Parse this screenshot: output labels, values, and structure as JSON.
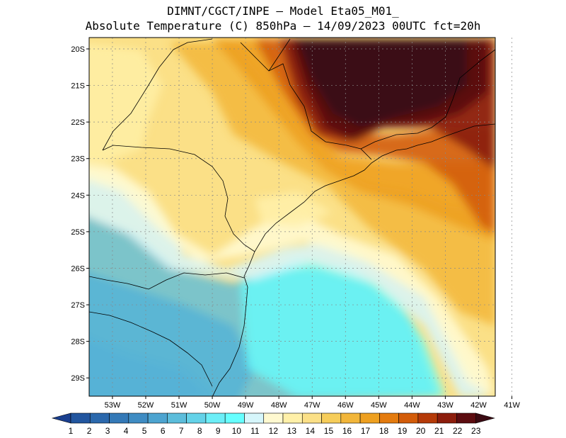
{
  "title": {
    "line1": "DIMNT/CGCT/INPE —  Model Eta05_M01_",
    "line2": "Absolute Temperature (C) 850hPa —  14/09/2023 00UTC fct=20h"
  },
  "axes": {
    "lat_labels": [
      "20S",
      "21S",
      "22S",
      "23S",
      "24S",
      "25S",
      "26S",
      "27S",
      "28S",
      "29S"
    ],
    "lon_labels": [
      "53W",
      "52W",
      "51W",
      "50W",
      "49W",
      "48W",
      "47W",
      "46W",
      "45W",
      "44W",
      "43W",
      "42W",
      "41W"
    ],
    "lat_range": [
      -20,
      -29.5
    ],
    "lon_range": [
      -53.7,
      -41.5
    ]
  },
  "colorbar": {
    "labels": [
      "1",
      "2",
      "3",
      "4",
      "5",
      "6",
      "7",
      "8",
      "9",
      "10",
      "11",
      "12",
      "13",
      "14",
      "15",
      "16",
      "17",
      "18",
      "19",
      "20",
      "21",
      "22",
      "23"
    ],
    "colors": [
      "#1a3f8f",
      "#22569f",
      "#2b68ac",
      "#3479b7",
      "#3f8cc3",
      "#4da4d0",
      "#5cbddb",
      "#64d2e8",
      "#6ceef7",
      "#66ffff",
      "#d6f6fb",
      "#fff9d0",
      "#fff0a8",
      "#fbe087",
      "#f6cd5a",
      "#f2b63a",
      "#eea020",
      "#e47b0e",
      "#d35c09",
      "#b53a08",
      "#8c1d0c",
      "#5c0c10",
      "#3a0a12"
    ]
  },
  "map_labels": {
    "state_note": ""
  }
}
